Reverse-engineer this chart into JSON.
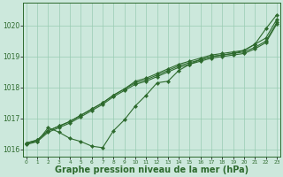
{
  "title": "Graphe pression niveau de la mer (hPa)",
  "hours": [
    0,
    1,
    2,
    3,
    4,
    5,
    6,
    7,
    8,
    9,
    10,
    11,
    12,
    13,
    14,
    15,
    16,
    17,
    18,
    19,
    20,
    21,
    22,
    23
  ],
  "line_wild": [
    1016.2,
    1016.25,
    1016.7,
    1016.55,
    1016.35,
    1016.25,
    1016.1,
    1016.05,
    1016.6,
    1016.95,
    1017.4,
    1017.75,
    1018.15,
    1018.2,
    1018.55,
    1018.75,
    1018.9,
    1019.0,
    1019.05,
    1019.1,
    1019.2,
    1019.4,
    1019.9,
    1020.35
  ],
  "line_a": [
    1016.2,
    1016.3,
    1016.6,
    1016.75,
    1016.9,
    1017.1,
    1017.3,
    1017.5,
    1017.75,
    1017.95,
    1018.2,
    1018.3,
    1018.45,
    1018.6,
    1018.75,
    1018.85,
    1018.95,
    1019.05,
    1019.1,
    1019.15,
    1019.2,
    1019.4,
    1019.6,
    1020.2
  ],
  "line_b": [
    1016.2,
    1016.3,
    1016.6,
    1016.75,
    1016.9,
    1017.1,
    1017.3,
    1017.5,
    1017.75,
    1017.95,
    1018.15,
    1018.25,
    1018.4,
    1018.55,
    1018.7,
    1018.8,
    1018.9,
    1019.0,
    1019.05,
    1019.1,
    1019.15,
    1019.3,
    1019.5,
    1020.1
  ],
  "line_c": [
    1016.15,
    1016.25,
    1016.55,
    1016.7,
    1016.85,
    1017.05,
    1017.25,
    1017.45,
    1017.7,
    1017.9,
    1018.1,
    1018.2,
    1018.35,
    1018.5,
    1018.65,
    1018.75,
    1018.85,
    1018.95,
    1019.0,
    1019.05,
    1019.1,
    1019.25,
    1019.45,
    1020.05
  ],
  "ylim": [
    1015.75,
    1020.75
  ],
  "yticks": [
    1016,
    1017,
    1018,
    1019,
    1020
  ],
  "xlim": [
    -0.3,
    23.3
  ],
  "line_color": "#2d6a2d",
  "bg_color": "#cce8dc",
  "grid_color": "#99ccb3",
  "title_color": "#2d6a2d",
  "title_fontsize": 7.0,
  "marker": "D",
  "marker_size": 2.2,
  "linewidth": 0.8
}
